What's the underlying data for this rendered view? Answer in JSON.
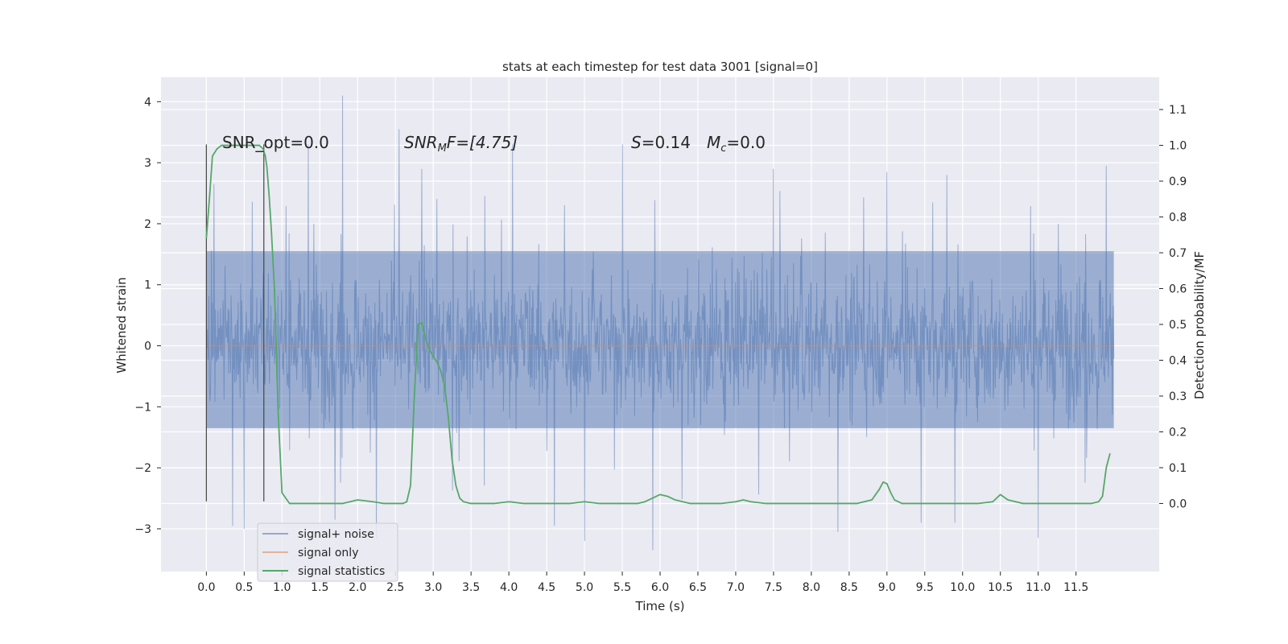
{
  "chart_data": {
    "type": "line",
    "title": "stats at each timestep for test data 3001 [signal=0]",
    "xlabel": "Time (s)",
    "ylabel_left": "Whitened strain",
    "ylabel_right": "Detection probability/MF",
    "xlim": [
      -0.6,
      12.6
    ],
    "ylim_left": [
      -3.7,
      4.4
    ],
    "ylim_right": [
      -0.19,
      1.19
    ],
    "x_ticks": [
      "0.0",
      "0.5",
      "1.0",
      "1.5",
      "2.0",
      "2.5",
      "3.0",
      "3.5",
      "4.0",
      "4.5",
      "5.0",
      "5.5",
      "6.0",
      "6.5",
      "7.0",
      "7.5",
      "8.0",
      "8.5",
      "9.0",
      "9.5",
      "10.0",
      "10.5",
      "11.0",
      "11.5"
    ],
    "y_ticks_left": [
      "−3",
      "−2",
      "−1",
      "0",
      "1",
      "2",
      "3",
      "4"
    ],
    "y_ticks_right": [
      "0.0",
      "0.1",
      "0.2",
      "0.3",
      "0.4",
      "0.5",
      "0.6",
      "0.7",
      "0.8",
      "0.9",
      "1.0",
      "1.1"
    ],
    "grid": true,
    "legend_position": "lower-left",
    "colors": {
      "noise": "#4c72b0",
      "signal_only": "#dd8452",
      "statistics": "#55a868",
      "background": "#eaeaf2",
      "text": "#262626"
    },
    "series": [
      {
        "name": "signal+ noise",
        "axis": "left",
        "style": "dense noisy band",
        "x_range": [
          0.0,
          12.0
        ],
        "core_band": [
          -1.35,
          1.55
        ],
        "min": -3.35,
        "max": 4.1,
        "peaks": [
          [
            0.1,
            2.65
          ],
          [
            0.35,
            2.85
          ],
          [
            1.35,
            3.3
          ],
          [
            1.8,
            4.1
          ],
          [
            2.55,
            3.55
          ],
          [
            2.85,
            2.9
          ],
          [
            4.05,
            3.3
          ],
          [
            5.5,
            3.3
          ],
          [
            7.5,
            2.9
          ],
          [
            9.0,
            2.85
          ],
          [
            11.9,
            2.95
          ]
        ],
        "troughs": [
          [
            0.35,
            -2.95
          ],
          [
            0.5,
            -3.0
          ],
          [
            1.7,
            -2.85
          ],
          [
            2.25,
            -3.15
          ],
          [
            4.6,
            -2.95
          ],
          [
            5.0,
            -3.2
          ],
          [
            5.9,
            -3.35
          ],
          [
            8.35,
            -3.05
          ],
          [
            9.45,
            -2.9
          ],
          [
            9.9,
            -2.9
          ],
          [
            11.0,
            -3.15
          ]
        ]
      },
      {
        "name": "signal only",
        "axis": "left",
        "x": [
          0.0,
          12.0
        ],
        "y": [
          0.0,
          0.0
        ]
      },
      {
        "name": "signal statistics",
        "axis": "right",
        "x": [
          0.0,
          0.04,
          0.08,
          0.14,
          0.2,
          0.3,
          0.4,
          0.5,
          0.6,
          0.7,
          0.75,
          0.78,
          0.8,
          0.83,
          0.86,
          0.9,
          0.95,
          1.0,
          1.1,
          1.3,
          1.5,
          1.7,
          1.8,
          1.9,
          2.0,
          2.2,
          2.35,
          2.5,
          2.6,
          2.65,
          2.7,
          2.75,
          2.8,
          2.85,
          2.9,
          2.95,
          3.0,
          3.05,
          3.1,
          3.15,
          3.2,
          3.25,
          3.3,
          3.35,
          3.4,
          3.5,
          3.6,
          3.8,
          4.0,
          4.2,
          4.5,
          4.8,
          5.0,
          5.2,
          5.5,
          5.7,
          5.8,
          5.9,
          6.0,
          6.1,
          6.2,
          6.3,
          6.4,
          6.6,
          6.8,
          7.0,
          7.1,
          7.2,
          7.4,
          7.6,
          8.0,
          8.3,
          8.6,
          8.8,
          8.9,
          8.95,
          9.0,
          9.05,
          9.1,
          9.2,
          9.4,
          9.6,
          10.0,
          10.2,
          10.4,
          10.5,
          10.6,
          10.8,
          11.0,
          11.2,
          11.4,
          11.5,
          11.7,
          11.8,
          11.85,
          11.9,
          11.95
        ],
        "y": [
          0.74,
          0.85,
          0.97,
          0.99,
          1.0,
          1.0,
          1.0,
          1.0,
          1.0,
          1.0,
          0.99,
          0.97,
          0.94,
          0.86,
          0.76,
          0.6,
          0.25,
          0.03,
          0.0,
          0.0,
          0.0,
          0.0,
          0.0,
          0.005,
          0.01,
          0.005,
          0.0,
          0.0,
          0.0,
          0.005,
          0.05,
          0.3,
          0.5,
          0.505,
          0.46,
          0.43,
          0.41,
          0.395,
          0.37,
          0.33,
          0.24,
          0.12,
          0.05,
          0.015,
          0.005,
          0.0,
          0.0,
          0.0,
          0.005,
          0.0,
          0.0,
          0.0,
          0.005,
          0.0,
          0.0,
          0.0,
          0.005,
          0.015,
          0.025,
          0.02,
          0.01,
          0.005,
          0.0,
          0.0,
          0.0,
          0.005,
          0.01,
          0.005,
          0.0,
          0.0,
          0.0,
          0.0,
          0.0,
          0.01,
          0.04,
          0.06,
          0.055,
          0.03,
          0.01,
          0.0,
          0.0,
          0.0,
          0.0,
          0.0,
          0.005,
          0.025,
          0.01,
          0.0,
          0.0,
          0.0,
          0.0,
          0.0,
          0.0,
          0.005,
          0.02,
          0.1,
          0.14
        ]
      }
    ],
    "vertical_markers": [
      {
        "x": 0.0,
        "ymin": -2.55,
        "ymax": 3.3
      },
      {
        "x": 0.76,
        "ymin": -2.55,
        "ymax": 3.3
      }
    ],
    "annotations": {
      "snr_opt": "SNR_opt=0.0",
      "snr_mf_name": "SNR",
      "snr_mf_sub": "M",
      "snr_mf_tail": "F=[4.75]",
      "s_name": "S",
      "s_value": "=0.14",
      "mc_name": "M",
      "mc_sub": "c",
      "mc_value": "=0.0"
    }
  }
}
